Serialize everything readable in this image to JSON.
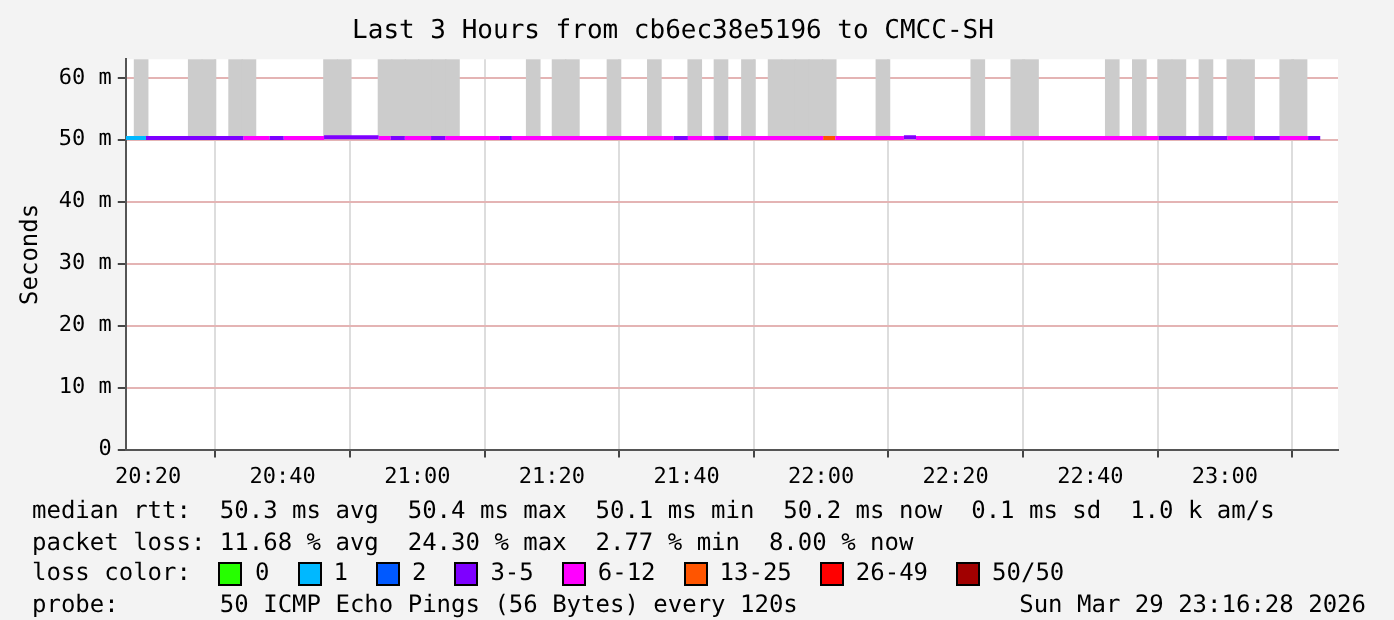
{
  "chart_data": {
    "type": "line",
    "title": "Last 3 Hours from cb6ec38e5196 to CMCC-SH",
    "ylabel": "Seconds",
    "xlim": [
      20.278,
      23.28
    ],
    "ylim": [
      0,
      63
    ],
    "xticks": [
      {
        "value": 20.3333,
        "label": "20:20"
      },
      {
        "value": 20.6667,
        "label": "20:40"
      },
      {
        "value": 21,
        "label": "21:00"
      },
      {
        "value": 21.3333,
        "label": "21:20"
      },
      {
        "value": 21.6667,
        "label": "21:40"
      },
      {
        "value": 22,
        "label": "22:00"
      },
      {
        "value": 22.3333,
        "label": "22:20"
      },
      {
        "value": 22.6667,
        "label": "22:40"
      },
      {
        "value": 23,
        "label": "23:00"
      }
    ],
    "yticks": [
      0,
      {
        "value": 10,
        "label": "10 m"
      },
      {
        "value": 20,
        "label": "20 m"
      },
      {
        "value": 30,
        "label": "30 m"
      },
      {
        "value": 40,
        "label": "40 m"
      },
      {
        "value": 50,
        "label": "50 m"
      },
      {
        "value": 60,
        "label": "60 m"
      }
    ],
    "grid": true,
    "legend": "bottom",
    "legend_title": "loss color:",
    "marker": "none",
    "line_style": "solid",
    "series": [
      {
        "type": "bar",
        "color": "#cccccc",
        "x": [
          20.316,
          20.45,
          20.484,
          20.55,
          20.583,
          20.785,
          20.819,
          20.92,
          20.954,
          20.987,
          21.02,
          21.054,
          21.087,
          21.287,
          21.351,
          21.384,
          21.487,
          21.587,
          21.687,
          21.752,
          21.82,
          21.886,
          21.92,
          21.953,
          21.987,
          22.02,
          22.153,
          22.388,
          22.487,
          22.521,
          22.721,
          22.788,
          22.852,
          22.886,
          22.953,
          23.022,
          23.056,
          23.153,
          23.186
        ],
        "base": [
          50.5,
          50.5,
          50.5,
          50.5,
          50.5,
          50.5,
          50.5,
          50.5,
          50.5,
          50.5,
          50.5,
          50.5,
          50.5,
          50.5,
          50.5,
          50.5,
          50.5,
          50.5,
          50.5,
          50.5,
          50.5,
          50.5,
          50.5,
          50.5,
          50.5,
          50.5,
          50.5,
          50.5,
          50.5,
          50.5,
          50.5,
          50.5,
          50.5,
          50.5,
          50.5,
          50.5,
          50.5,
          50.5,
          50.5
        ],
        "values": [
          12.5,
          12.5,
          12.5,
          12.5,
          12.5,
          12.5,
          12.5,
          12.5,
          12.5,
          12.5,
          12.5,
          12.5,
          12.5,
          12.5,
          12.5,
          12.5,
          12.5,
          12.5,
          12.5,
          12.5,
          12.5,
          12.5,
          12.5,
          12.5,
          12.5,
          12.5,
          12.5,
          12.5,
          12.5,
          12.5,
          12.5,
          12.5,
          12.5,
          12.5,
          12.5,
          12.5,
          12.5,
          12.5,
          12.5
        ]
      },
      {
        "name": "0",
        "color": "#26ff00"
      },
      {
        "name": "1",
        "color": "#00b8ff",
        "x": [
          20.278,
          20.328
        ],
        "values": [
          50.3,
          50.3
        ]
      },
      {
        "name": "2",
        "color": "#0059ff"
      },
      {
        "name": "3-5",
        "color": "#7e00ff",
        "x": [
          20.328,
          20.569,
          20.634,
          20.669,
          20.769,
          20.904,
          20.934,
          20.969,
          21.034,
          21.069,
          21.204,
          21.234,
          21.635,
          21.67,
          21.735,
          21.77,
          22.205,
          22.235,
          22.836,
          23.006,
          23.071,
          23.136,
          23.206,
          23.236
        ],
        "values": [
          50.3,
          50.3,
          50.3,
          50.3,
          50.4,
          50.4,
          50.3,
          50.3,
          50.3,
          50.3,
          50.3,
          50.3,
          50.3,
          50.3,
          50.3,
          50.3,
          50.4,
          50.4,
          50.3,
          50.3,
          50.3,
          50.3,
          50.3,
          50.3
        ]
      },
      {
        "name": "6-12",
        "color": "#ff00ff",
        "x": [
          20.569,
          20.634,
          20.669,
          20.769,
          20.904,
          20.934,
          20.969,
          21.034,
          21.069,
          21.204,
          21.234,
          21.635,
          21.67,
          21.735,
          21.77,
          22.005,
          22.035,
          22.205,
          22.235,
          22.836,
          23.006,
          23.071,
          23.136,
          23.206
        ],
        "values": [
          50.3,
          50.3,
          50.3,
          50.3,
          50.3,
          50.3,
          50.3,
          50.3,
          50.3,
          50.3,
          50.3,
          50.3,
          50.3,
          50.3,
          50.3,
          50.3,
          50.3,
          50.3,
          50.3,
          50.3,
          50.3,
          50.3,
          50.3,
          50.3
        ]
      },
      {
        "name": "13-25",
        "color": "#ff5500",
        "x": [
          22.005,
          22.035
        ],
        "values": [
          50.3,
          50.3
        ]
      },
      {
        "name": "26-49",
        "color": "#ff0000"
      },
      {
        "name": "50/50",
        "color": "#a10000"
      }
    ],
    "annotations": [
      "median rtt:  50.3 ms avg  50.4 ms max  50.1 ms min  50.2 ms now  0.1 ms sd  1.0 k am/s",
      "packet loss: 11.68 % avg  24.30 % max  2.77 % min  8.00 % now",
      "probe:       50 ICMP Echo Pings (56 Bytes) every 120s",
      "Sun Mar 29 23:16:28 2026"
    ]
  }
}
